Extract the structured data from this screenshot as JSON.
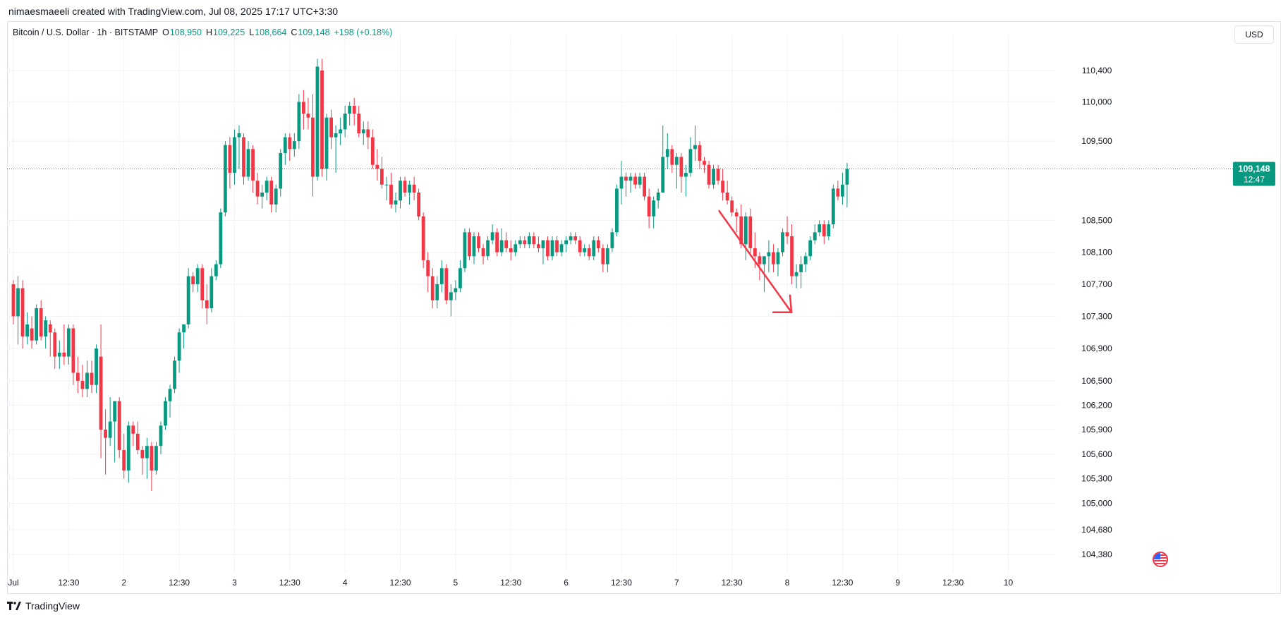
{
  "header": {
    "text": "nimaesmaeeli created with TradingView.com, Jul 08, 2025 17:17 UTC+3:30"
  },
  "legend": {
    "symbol": "Bitcoin / U.S. Dollar · 1h · BITSTAMP",
    "o_label": "O",
    "o_value": "108,950",
    "h_label": "H",
    "h_value": "109,225",
    "l_label": "L",
    "l_value": "108,664",
    "c_label": "C",
    "c_value": "109,148",
    "change": "+198 (+0.18%)"
  },
  "currency_button": "USD",
  "footer": {
    "brand": "TradingView"
  },
  "flag_icon": "us-flag-icon",
  "colors": {
    "up": "#089981",
    "down": "#f23645",
    "grid": "#f0f3fa",
    "text": "#131722"
  },
  "chart_data": {
    "type": "candlestick",
    "symbol": "BTCUSD",
    "exchange": "BITSTAMP",
    "interval": "1h",
    "y_scale": "log",
    "y_ticks": [
      110400,
      110000,
      109500,
      108500,
      108100,
      107700,
      107300,
      106900,
      106500,
      106200,
      105900,
      105600,
      105300,
      105000,
      104680,
      104380
    ],
    "y_tick_labels": [
      "110,400",
      "110,000",
      "109,500",
      "108,500",
      "108,100",
      "107,700",
      "107,300",
      "106,900",
      "106,500",
      "106,200",
      "105,900",
      "105,600",
      "105,300",
      "105,000",
      "104,680",
      "104,380"
    ],
    "x_ticks": [
      {
        "label": "Jul",
        "bar": 0
      },
      {
        "label": "12:30",
        "bar": 12
      },
      {
        "label": "2",
        "bar": 24
      },
      {
        "label": "12:30",
        "bar": 36
      },
      {
        "label": "3",
        "bar": 48
      },
      {
        "label": "12:30",
        "bar": 60
      },
      {
        "label": "4",
        "bar": 72
      },
      {
        "label": "12:30",
        "bar": 84
      },
      {
        "label": "5",
        "bar": 96
      },
      {
        "label": "12:30",
        "bar": 108
      },
      {
        "label": "6",
        "bar": 120
      },
      {
        "label": "12:30",
        "bar": 132
      },
      {
        "label": "7",
        "bar": 144
      },
      {
        "label": "12:30",
        "bar": 156
      },
      {
        "label": "8",
        "bar": 168
      },
      {
        "label": "12:30",
        "bar": 180
      },
      {
        "label": "9",
        "bar": 192
      },
      {
        "label": "12:30",
        "bar": 204
      },
      {
        "label": "10",
        "bar": 216
      }
    ],
    "last_price": 109148,
    "last_price_label": "109,148",
    "countdown_label": "12:47",
    "candles": [
      [
        107700,
        107750,
        107200,
        107300
      ],
      [
        107300,
        107800,
        106950,
        107650
      ],
      [
        107650,
        107750,
        106900,
        107050
      ],
      [
        107050,
        107350,
        106950,
        107200
      ],
      [
        107150,
        107300,
        106900,
        107000
      ],
      [
        107000,
        107450,
        106950,
        107400
      ],
      [
        107400,
        107500,
        107000,
        107050
      ],
      [
        107050,
        107300,
        106900,
        107250
      ],
      [
        107200,
        107250,
        106800,
        107100
      ],
      [
        107100,
        107150,
        106650,
        106800
      ],
      [
        106800,
        107000,
        106650,
        106850
      ],
      [
        106850,
        107200,
        106700,
        106800
      ],
      [
        106800,
        107200,
        106700,
        107150
      ],
      [
        107150,
        107200,
        106450,
        106600
      ],
      [
        106600,
        106800,
        106350,
        106500
      ],
      [
        106500,
        106700,
        106300,
        106400
      ],
      [
        106400,
        106750,
        106300,
        106600
      ],
      [
        106600,
        106750,
        106350,
        106450
      ],
      [
        106450,
        106950,
        106350,
        106900
      ],
      [
        106800,
        107200,
        105550,
        105900
      ],
      [
        105900,
        106150,
        105350,
        105800
      ],
      [
        105800,
        106300,
        105700,
        106000
      ],
      [
        106000,
        106250,
        105500,
        106250
      ],
      [
        106250,
        106300,
        105550,
        105650
      ],
      [
        105650,
        105850,
        105300,
        105400
      ],
      [
        105400,
        106000,
        105250,
        105950
      ],
      [
        105950,
        106000,
        105700,
        105850
      ],
      [
        105850,
        106000,
        105600,
        105650
      ],
      [
        105650,
        105700,
        105350,
        105550
      ],
      [
        105550,
        105800,
        105300,
        105700
      ],
      [
        105700,
        105750,
        105150,
        105400
      ],
      [
        105400,
        105750,
        105350,
        105700
      ],
      [
        105700,
        106000,
        105600,
        105950
      ],
      [
        105950,
        106300,
        105900,
        106250
      ],
      [
        106250,
        106450,
        106050,
        106400
      ],
      [
        106400,
        106800,
        106350,
        106750
      ],
      [
        106750,
        107150,
        106600,
        107100
      ],
      [
        107100,
        107200,
        106900,
        107200
      ],
      [
        107200,
        107900,
        107150,
        107800
      ],
      [
        107800,
        107850,
        107600,
        107700
      ],
      [
        107700,
        107950,
        107600,
        107900
      ],
      [
        107900,
        107950,
        107400,
        107500
      ],
      [
        107500,
        107700,
        107200,
        107400
      ],
      [
        107400,
        107900,
        107350,
        107800
      ],
      [
        107800,
        108000,
        107750,
        107950
      ],
      [
        107950,
        108650,
        107900,
        108600
      ],
      [
        108600,
        109500,
        108550,
        109450
      ],
      [
        109450,
        109550,
        108900,
        109100
      ],
      [
        109100,
        109650,
        108950,
        109550
      ],
      [
        109550,
        109700,
        109150,
        109600
      ],
      [
        109550,
        109600,
        108950,
        109050
      ],
      [
        109050,
        109500,
        109000,
        109400
      ],
      [
        109400,
        109450,
        108850,
        109000
      ],
      [
        109000,
        109100,
        108700,
        108800
      ],
      [
        108800,
        108950,
        108650,
        108850
      ],
      [
        108850,
        109050,
        108750,
        109000
      ],
      [
        109000,
        109050,
        108600,
        108700
      ],
      [
        108700,
        108950,
        108600,
        108900
      ],
      [
        108900,
        109400,
        108800,
        109350
      ],
      [
        109350,
        109600,
        109200,
        109550
      ],
      [
        109550,
        109600,
        109250,
        109400
      ],
      [
        109400,
        109600,
        109300,
        109500
      ],
      [
        109500,
        110100,
        109400,
        110000
      ],
      [
        110000,
        110150,
        109650,
        109850
      ],
      [
        109850,
        110050,
        109650,
        109800
      ],
      [
        109800,
        110100,
        108800,
        109050
      ],
      [
        109050,
        110550,
        109000,
        110450
      ],
      [
        110400,
        110550,
        109050,
        109150
      ],
      [
        109150,
        109850,
        109000,
        109800
      ],
      [
        109800,
        109900,
        109400,
        109550
      ],
      [
        109550,
        109700,
        109100,
        109600
      ],
      [
        109600,
        109800,
        109450,
        109650
      ],
      [
        109650,
        109950,
        109550,
        109850
      ],
      [
        109850,
        110000,
        109700,
        109950
      ],
      [
        109950,
        110050,
        109700,
        109850
      ],
      [
        109850,
        109950,
        109550,
        109600
      ],
      [
        109600,
        109750,
        109450,
        109650
      ],
      [
        109650,
        109750,
        109400,
        109550
      ],
      [
        109550,
        109650,
        109150,
        109200
      ],
      [
        109200,
        109400,
        109000,
        109150
      ],
      [
        109150,
        109300,
        108900,
        108950
      ],
      [
        108950,
        109050,
        108750,
        108950
      ],
      [
        108950,
        109100,
        108650,
        108700
      ],
      [
        108700,
        108850,
        108600,
        108750
      ],
      [
        108750,
        109050,
        108650,
        109000
      ],
      [
        109000,
        109050,
        108800,
        108850
      ],
      [
        108850,
        109000,
        108700,
        108950
      ],
      [
        108950,
        109050,
        108750,
        108850
      ],
      [
        108850,
        108900,
        108500,
        108550
      ],
      [
        108550,
        108600,
        107900,
        108000
      ],
      [
        108000,
        108100,
        107600,
        107800
      ],
      [
        107800,
        107900,
        107400,
        107500
      ],
      [
        107500,
        107800,
        107400,
        107700
      ],
      [
        107700,
        108000,
        107600,
        107900
      ],
      [
        107900,
        107950,
        107450,
        107500
      ],
      [
        107500,
        107700,
        107300,
        107600
      ],
      [
        107600,
        107750,
        107500,
        107650
      ],
      [
        107650,
        108000,
        107600,
        107900
      ],
      [
        107900,
        108400,
        107850,
        108350
      ],
      [
        108350,
        108400,
        108000,
        108050
      ],
      [
        108050,
        108350,
        107950,
        108300
      ],
      [
        108300,
        108350,
        108100,
        108150
      ],
      [
        108150,
        108200,
        107950,
        108050
      ],
      [
        108050,
        108300,
        108000,
        108250
      ],
      [
        108250,
        108450,
        108200,
        108350
      ],
      [
        108350,
        108400,
        108050,
        108100
      ],
      [
        108100,
        108400,
        108050,
        108250
      ],
      [
        108250,
        108350,
        108100,
        108150
      ],
      [
        108150,
        108250,
        108000,
        108100
      ],
      [
        108100,
        108250,
        108050,
        108200
      ],
      [
        108200,
        108300,
        108150,
        108250
      ],
      [
        108250,
        108300,
        108150,
        108200
      ],
      [
        108200,
        108350,
        108150,
        108300
      ],
      [
        108300,
        108350,
        108150,
        108200
      ],
      [
        108200,
        108300,
        108100,
        108150
      ],
      [
        108150,
        108250,
        107950,
        108250
      ],
      [
        108250,
        108300,
        108000,
        108050
      ],
      [
        108050,
        108300,
        108000,
        108250
      ],
      [
        108250,
        108300,
        108050,
        108100
      ],
      [
        108100,
        108250,
        108050,
        108200
      ],
      [
        108200,
        108300,
        108100,
        108250
      ],
      [
        108250,
        108350,
        108200,
        108300
      ],
      [
        108300,
        108350,
        108200,
        108250
      ],
      [
        108250,
        108300,
        108050,
        108100
      ],
      [
        108100,
        108200,
        108050,
        108150
      ],
      [
        108150,
        108200,
        108000,
        108050
      ],
      [
        108050,
        108300,
        108000,
        108250
      ],
      [
        108250,
        108300,
        108100,
        108150
      ],
      [
        108150,
        108200,
        107850,
        107950
      ],
      [
        107950,
        108200,
        107850,
        108150
      ],
      [
        108150,
        108400,
        108100,
        108350
      ],
      [
        108350,
        108950,
        108300,
        108900
      ],
      [
        108900,
        109250,
        108700,
        109050
      ],
      [
        109050,
        109100,
        108800,
        109000
      ],
      [
        109000,
        109100,
        108850,
        109050
      ],
      [
        109050,
        109100,
        108900,
        108950
      ],
      [
        108950,
        109100,
        108900,
        109050
      ],
      [
        109050,
        109100,
        108750,
        108800
      ],
      [
        108800,
        108900,
        108400,
        108550
      ],
      [
        108550,
        108800,
        108400,
        108750
      ],
      [
        108750,
        108900,
        108650,
        108850
      ],
      [
        108850,
        109700,
        108850,
        109300
      ],
      [
        109300,
        109600,
        109150,
        109400
      ],
      [
        109400,
        109450,
        109100,
        109200
      ],
      [
        109200,
        109350,
        108900,
        109300
      ],
      [
        109300,
        109350,
        108850,
        109050
      ],
      [
        109050,
        109200,
        108800,
        109100
      ],
      [
        109100,
        109550,
        109050,
        109400
      ],
      [
        109400,
        109700,
        109250,
        109450
      ],
      [
        109450,
        109500,
        109150,
        109250
      ],
      [
        109250,
        109300,
        109100,
        109200
      ],
      [
        109200,
        109250,
        108900,
        108950
      ],
      [
        108950,
        109200,
        108900,
        109150
      ],
      [
        109150,
        109200,
        108950,
        109000
      ],
      [
        109000,
        109150,
        108750,
        108850
      ],
      [
        108850,
        109000,
        108700,
        108750
      ],
      [
        108750,
        108800,
        108550,
        108600
      ],
      [
        108600,
        108650,
        108350,
        108550
      ],
      [
        108550,
        108700,
        108150,
        108200
      ],
      [
        108200,
        108600,
        108000,
        108550
      ],
      [
        108550,
        108650,
        108050,
        108150
      ],
      [
        108150,
        108350,
        107900,
        108050
      ],
      [
        108050,
        108100,
        107750,
        107950
      ],
      [
        107950,
        108050,
        107600,
        108050
      ],
      [
        108050,
        108250,
        107850,
        108100
      ],
      [
        108100,
        108200,
        107850,
        107950
      ],
      [
        107950,
        108150,
        107800,
        108100
      ],
      [
        108100,
        108400,
        108050,
        108350
      ],
      [
        108350,
        108550,
        108200,
        108300
      ],
      [
        108300,
        108450,
        107700,
        107800
      ],
      [
        107800,
        107950,
        107650,
        107850
      ],
      [
        107850,
        108050,
        107650,
        107950
      ],
      [
        107950,
        108100,
        107850,
        108050
      ],
      [
        108050,
        108300,
        108000,
        108250
      ],
      [
        108250,
        108450,
        108200,
        108350
      ],
      [
        108350,
        108500,
        108300,
        108450
      ],
      [
        108450,
        108500,
        108200,
        108300
      ],
      [
        108300,
        108500,
        108250,
        108450
      ],
      [
        108450,
        108950,
        108400,
        108900
      ],
      [
        108900,
        109000,
        108750,
        108800
      ],
      [
        108800,
        109100,
        108700,
        108950
      ],
      [
        108950,
        109225,
        108664,
        109148
      ]
    ],
    "annotation": {
      "type": "arrow",
      "color": "#f23645",
      "from": {
        "bar": 152,
        "price": 108600
      },
      "to": {
        "bar": 168,
        "price": 107350
      }
    }
  }
}
